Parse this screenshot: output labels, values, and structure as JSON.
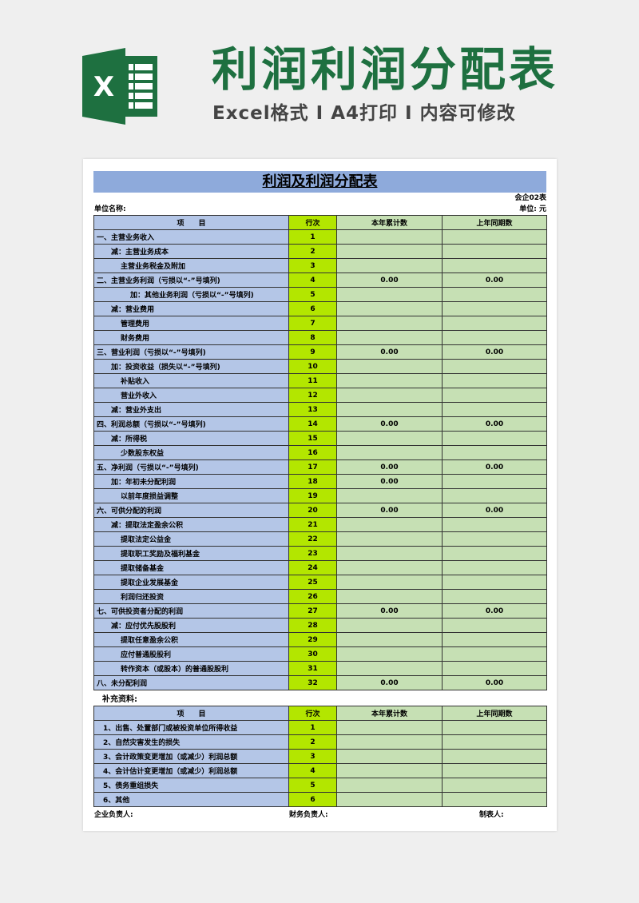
{
  "banner": {
    "title": "利润利润分配表",
    "subtitle": "Excel格式 I A4打印 I 内容可修改",
    "logo_letter": "X",
    "accent": "#1e7040"
  },
  "doc": {
    "title": "利润及利润分配表",
    "form_no": "会企02表",
    "unit_name_label": "单位名称:",
    "unit_label": "单位: 元",
    "headers": [
      "项　　目",
      "行次",
      "本年累计数",
      "上年同期数"
    ],
    "rows": [
      {
        "item": "一、主营业务收入",
        "level": 0,
        "no": "1",
        "cur": "",
        "prev": ""
      },
      {
        "item": "减：主营业务成本",
        "level": 1,
        "no": "2",
        "cur": "",
        "prev": ""
      },
      {
        "item": "主营业务税金及附加",
        "level": 2,
        "no": "3",
        "cur": "",
        "prev": ""
      },
      {
        "item": "二、主营业务利润（亏损以“-”号填列)",
        "level": 0,
        "no": "4",
        "cur": "0.00",
        "prev": "0.00"
      },
      {
        "item": "加：其他业务利润（亏损以“-”号填列)",
        "level": 3,
        "no": "5",
        "cur": "",
        "prev": ""
      },
      {
        "item": "减：营业费用",
        "level": 1,
        "no": "6",
        "cur": "",
        "prev": ""
      },
      {
        "item": "管理费用",
        "level": 2,
        "no": "7",
        "cur": "",
        "prev": ""
      },
      {
        "item": "财务费用",
        "level": 2,
        "no": "8",
        "cur": "",
        "prev": ""
      },
      {
        "item": "三、营业利润（亏损以“-”号填列)",
        "level": 0,
        "no": "9",
        "cur": "0.00",
        "prev": "0.00"
      },
      {
        "item": "加：投资收益（损失以“-”号填列)",
        "level": 1,
        "no": "10",
        "cur": "",
        "prev": ""
      },
      {
        "item": "补贴收入",
        "level": 2,
        "no": "11",
        "cur": "",
        "prev": ""
      },
      {
        "item": "营业外收入",
        "level": 2,
        "no": "12",
        "cur": "",
        "prev": ""
      },
      {
        "item": "减：营业外支出",
        "level": 1,
        "no": "13",
        "cur": "",
        "prev": ""
      },
      {
        "item": "四、利润总额（亏损以“-”号填列)",
        "level": 0,
        "no": "14",
        "cur": "0.00",
        "prev": "0.00"
      },
      {
        "item": "减：所得税",
        "level": 1,
        "no": "15",
        "cur": "",
        "prev": ""
      },
      {
        "item": "少数股东权益",
        "level": 2,
        "no": "16",
        "cur": "",
        "prev": ""
      },
      {
        "item": "五、净利润（亏损以“-”号填列)",
        "level": 0,
        "no": "17",
        "cur": "0.00",
        "prev": "0.00"
      },
      {
        "item": "加：年初未分配利润",
        "level": 1,
        "no": "18",
        "cur": "0.00",
        "prev": ""
      },
      {
        "item": "以前年度损益调整",
        "level": 2,
        "no": "19",
        "cur": "",
        "prev": ""
      },
      {
        "item": "六、可供分配的利润",
        "level": 0,
        "no": "20",
        "cur": "0.00",
        "prev": "0.00"
      },
      {
        "item": "减：提取法定盈余公积",
        "level": 1,
        "no": "21",
        "cur": "",
        "prev": ""
      },
      {
        "item": "提取法定公益金",
        "level": 2,
        "no": "22",
        "cur": "",
        "prev": ""
      },
      {
        "item": "提取职工奖励及福利基金",
        "level": 2,
        "no": "23",
        "cur": "",
        "prev": ""
      },
      {
        "item": "提取储备基金",
        "level": 2,
        "no": "24",
        "cur": "",
        "prev": ""
      },
      {
        "item": "提取企业发展基金",
        "level": 2,
        "no": "25",
        "cur": "",
        "prev": ""
      },
      {
        "item": "利润归还投资",
        "level": 2,
        "no": "26",
        "cur": "",
        "prev": ""
      },
      {
        "item": "七、可供投资者分配的利润",
        "level": 0,
        "no": "27",
        "cur": "0.00",
        "prev": "0.00"
      },
      {
        "item": "减：应付优先股股利",
        "level": 1,
        "no": "28",
        "cur": "",
        "prev": ""
      },
      {
        "item": "提取任意盈余公积",
        "level": 2,
        "no": "29",
        "cur": "",
        "prev": ""
      },
      {
        "item": "应付普通股股利",
        "level": 2,
        "no": "30",
        "cur": "",
        "prev": ""
      },
      {
        "item": "转作资本（或股本）的普通股股利",
        "level": 2,
        "no": "31",
        "cur": "",
        "prev": ""
      },
      {
        "item": "八、未分配利润",
        "level": 0,
        "no": "32",
        "cur": "0.00",
        "prev": "0.00"
      }
    ],
    "supplement_label": "补充资料:",
    "supplement_rows": [
      {
        "item": "1、出售、处置部门或被投资单位所得收益",
        "no": "1",
        "cur": "",
        "prev": ""
      },
      {
        "item": "2、自然灾害发生的损失",
        "no": "2",
        "cur": "",
        "prev": ""
      },
      {
        "item": "3、会计政策变更增加（或减少）利润总额",
        "no": "3",
        "cur": "",
        "prev": ""
      },
      {
        "item": "4、会计估计变更增加（或减少）利润总额",
        "no": "4",
        "cur": "",
        "prev": ""
      },
      {
        "item": "5、债务重组损失",
        "no": "5",
        "cur": "",
        "prev": ""
      },
      {
        "item": "6、其他",
        "no": "6",
        "cur": "",
        "prev": ""
      }
    ],
    "footer": {
      "head": "企业负责人:",
      "finance": "财务负责人:",
      "preparer": "制表人:"
    }
  }
}
